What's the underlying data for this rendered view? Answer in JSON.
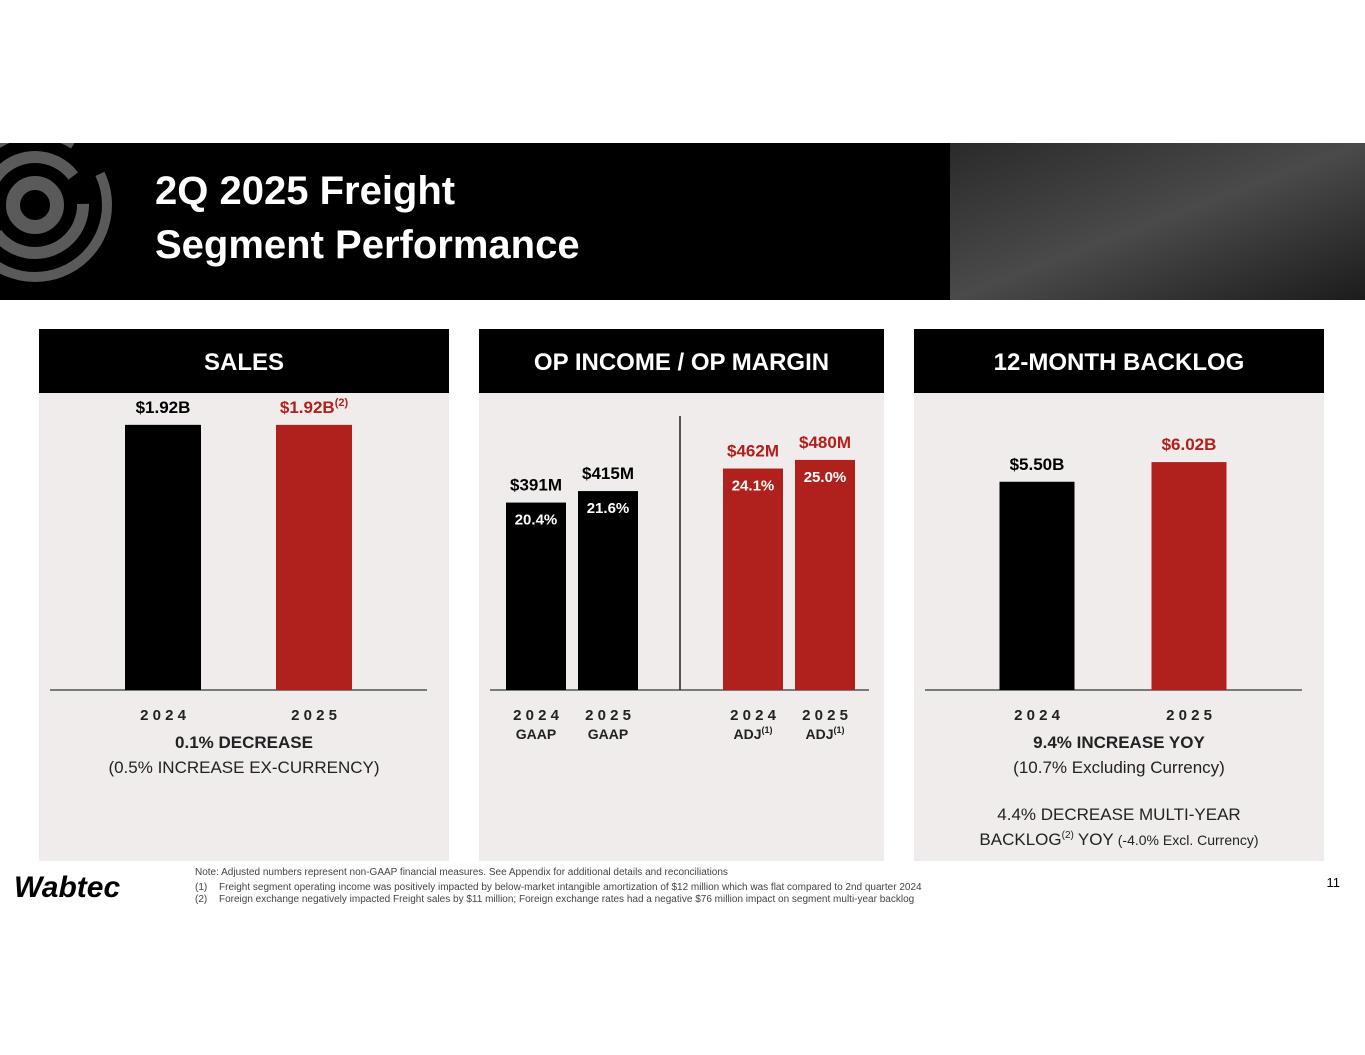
{
  "header": {
    "title_lines": [
      "2Q 2025 Freight",
      "Segment Performance"
    ]
  },
  "chart_data": [
    {
      "type": "bar",
      "title": "SALES",
      "categories": [
        "2 0 2 4",
        "2 0 2 5"
      ],
      "values": [
        1.92,
        1.92
      ],
      "value_labels": [
        "$1.92B",
        "$1.92B"
      ],
      "value_label_notes": [
        null,
        "(2)"
      ],
      "colors": [
        "#000000",
        "#b0201c"
      ],
      "ylim": [
        0,
        2.1
      ],
      "annotations": [
        "0.1% DECREASE",
        "(0.5% INCREASE EX-CURRENCY)"
      ]
    },
    {
      "type": "bar",
      "title": "OP INCOME / OP MARGIN",
      "categories": [
        "2 0 2 4",
        "2 0 2 5",
        "2 0 2 4",
        "2 0 2 5"
      ],
      "sublabels": [
        "GAAP",
        "GAAP",
        "ADJ",
        "ADJ"
      ],
      "sublabel_notes": [
        null,
        null,
        "(1)",
        "(1)"
      ],
      "values": [
        391,
        415,
        462,
        480
      ],
      "value_labels": [
        "$391M",
        "$415M",
        "$462M",
        "$480M"
      ],
      "margins": [
        20.4,
        21.6,
        24.1,
        25.0
      ],
      "margin_labels": [
        "20.4%",
        "21.6%",
        "24.1%",
        "25.0%"
      ],
      "colors": [
        "#000000",
        "#000000",
        "#b0201c",
        "#b0201c"
      ],
      "ylim": [
        0,
        605
      ]
    },
    {
      "type": "bar",
      "title": "12-MONTH BACKLOG",
      "categories": [
        "2 0 2 4",
        "2 0 2 5"
      ],
      "values": [
        5.5,
        6.02
      ],
      "value_labels": [
        "$5.50B",
        "$6.02B"
      ],
      "colors": [
        "#000000",
        "#b0201c"
      ],
      "ylim": [
        0,
        7.66
      ],
      "annotations": [
        "9.4% INCREASE YOY",
        "(10.7% Excluding Currency)",
        "4.4% DECREASE  MULTI-YEAR"
      ],
      "annotation_tail": [
        "BACKLOG",
        "(2)",
        "YOY",
        "(-4.0% Excl. Currency)"
      ]
    }
  ],
  "footnotes": [
    {
      "text": "Note: Adjusted numbers represent non-GAAP financial measures. See Appendix for additional details and reconciliations"
    },
    {
      "marker": "(1)",
      "text": "Freight segment operating income was positively impacted by below-market intangible amortization of $12 million which was flat compared to 2nd quarter 2024"
    },
    {
      "marker": "(2)",
      "text": "Foreign exchange negatively impacted Freight sales by $11 million; Foreign exchange rates had a negative $76 million impact on segment multi-year backlog"
    }
  ],
  "logo": "Wabtec",
  "page_number": "11"
}
